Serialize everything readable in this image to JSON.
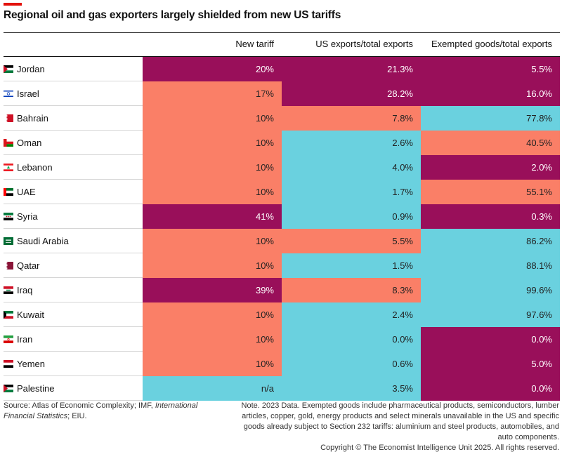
{
  "title": "Regional oil and gas exporters largely shielded from new US tariffs",
  "colors": {
    "high": "#990f5a",
    "mid": "#fa7f67",
    "low": "#6ad1df",
    "text_on_high": "#ffffff",
    "text_on_other": "#222222",
    "accent": "#e3120b"
  },
  "chart_data": {
    "type": "table",
    "columns": [
      "New tariff",
      "US exports/total exports",
      "Exempted goods/total exports"
    ],
    "rows": [
      {
        "country": "Jordan",
        "values": [
          "20%",
          "21.3%",
          "5.5%"
        ],
        "levels": [
          "high",
          "high",
          "high"
        ]
      },
      {
        "country": "Israel",
        "values": [
          "17%",
          "28.2%",
          "16.0%"
        ],
        "levels": [
          "mid",
          "high",
          "high"
        ]
      },
      {
        "country": "Bahrain",
        "values": [
          "10%",
          "7.8%",
          "77.8%"
        ],
        "levels": [
          "mid",
          "mid",
          "low"
        ]
      },
      {
        "country": "Oman",
        "values": [
          "10%",
          "2.6%",
          "40.5%"
        ],
        "levels": [
          "mid",
          "low",
          "mid"
        ]
      },
      {
        "country": "Lebanon",
        "values": [
          "10%",
          "4.0%",
          "2.0%"
        ],
        "levels": [
          "mid",
          "low",
          "high"
        ]
      },
      {
        "country": "UAE",
        "values": [
          "10%",
          "1.7%",
          "55.1%"
        ],
        "levels": [
          "mid",
          "low",
          "mid"
        ]
      },
      {
        "country": "Syria",
        "values": [
          "41%",
          "0.9%",
          "0.3%"
        ],
        "levels": [
          "high",
          "low",
          "high"
        ]
      },
      {
        "country": "Saudi Arabia",
        "values": [
          "10%",
          "5.5%",
          "86.2%"
        ],
        "levels": [
          "mid",
          "mid",
          "low"
        ]
      },
      {
        "country": "Qatar",
        "values": [
          "10%",
          "1.5%",
          "88.1%"
        ],
        "levels": [
          "mid",
          "low",
          "low"
        ]
      },
      {
        "country": "Iraq",
        "values": [
          "39%",
          "8.3%",
          "99.6%"
        ],
        "levels": [
          "high",
          "mid",
          "low"
        ]
      },
      {
        "country": "Kuwait",
        "values": [
          "10%",
          "2.4%",
          "97.6%"
        ],
        "levels": [
          "mid",
          "low",
          "low"
        ]
      },
      {
        "country": "Iran",
        "values": [
          "10%",
          "0.0%",
          "0.0%"
        ],
        "levels": [
          "mid",
          "low",
          "high"
        ]
      },
      {
        "country": "Yemen",
        "values": [
          "10%",
          "0.6%",
          "5.0%"
        ],
        "levels": [
          "mid",
          "low",
          "high"
        ]
      },
      {
        "country": "Palestine",
        "values": [
          "n/a",
          "3.5%",
          "0.0%"
        ],
        "levels": [
          "low",
          "low",
          "high"
        ]
      }
    ]
  },
  "footer": {
    "source_prefix": "Source: Atlas of Economic Complexity; IMF, ",
    "source_italic": "International Financial Statistics",
    "source_suffix": "; EIU.",
    "note": "Note. 2023 Data. Exempted goods include pharmaceutical products, semiconductors, lumber articles, copper, gold, energy products and select minerals unavailable in the US and specific goods already subject to Section 232 tariffs: aluminium and steel products, automobiles, and auto components.",
    "copyright": "Copyright © The Economist Intelligence Unit 2025. All rights reserved."
  }
}
